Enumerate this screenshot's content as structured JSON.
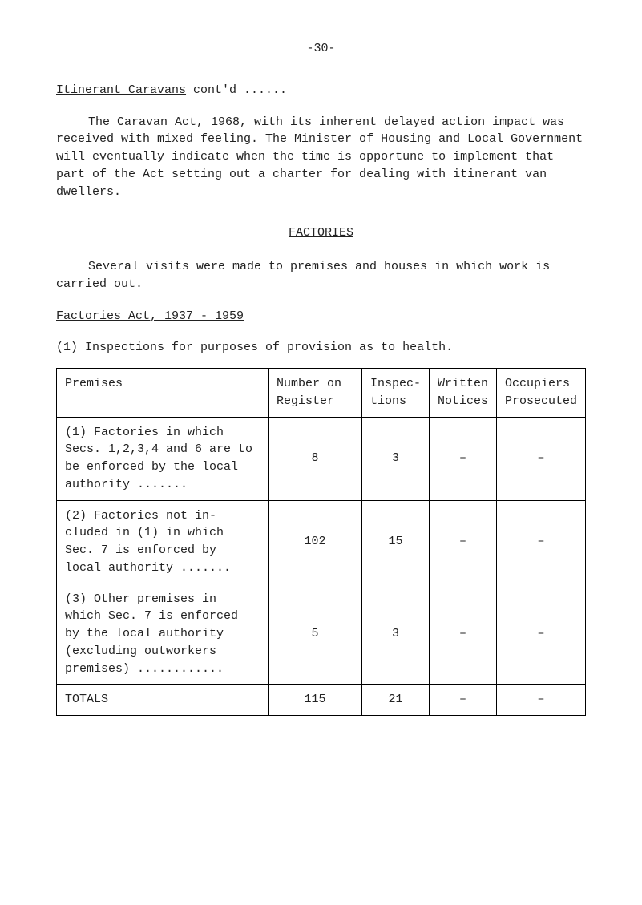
{
  "page_number": "-30-",
  "itinerant_heading": "Itinerant Caravans",
  "itinerant_contd": " cont'd ......",
  "para1": "The Caravan Act, 1968, with its inherent delayed action impact was received with mixed feeling. The Minister of Housing and Local Government will eventually indicate when the time is opportune to implement that part of the Act setting out a charter for dealing with itinerant van dwellers.",
  "factories_heading": "FACTORIES",
  "para2": "Several visits were made to premises and houses in which work is carried out.",
  "factories_act": "Factories Act, 1937 - 1959",
  "inspections_line": "(1) Inspections for purposes of provision as to health.",
  "table": {
    "headers": [
      "Premises",
      "Number on Register",
      "Inspec-\ntions",
      "Written\nNotices",
      "Occupiers\nProsecuted"
    ],
    "rows": [
      {
        "premises": "(1) Factories in which Secs. 1,2,3,4 and 6 are to be enforced by the local authority .......",
        "register": "8",
        "inspections": "3",
        "notices": "–",
        "prosecuted": "–"
      },
      {
        "premises": "(2) Factories not in-\ncluded in (1) in which Sec. 7 is enforced by local authority .......",
        "register": "102",
        "inspections": "15",
        "notices": "–",
        "prosecuted": "–"
      },
      {
        "premises": "(3) Other premises in which Sec. 7 is enforced by the local authority (excluding outworkers premises) ............",
        "register": "5",
        "inspections": "3",
        "notices": "–",
        "prosecuted": "–"
      }
    ],
    "totals": {
      "label": "TOTALS",
      "register": "115",
      "inspections": "21",
      "notices": "–",
      "prosecuted": "–"
    }
  }
}
